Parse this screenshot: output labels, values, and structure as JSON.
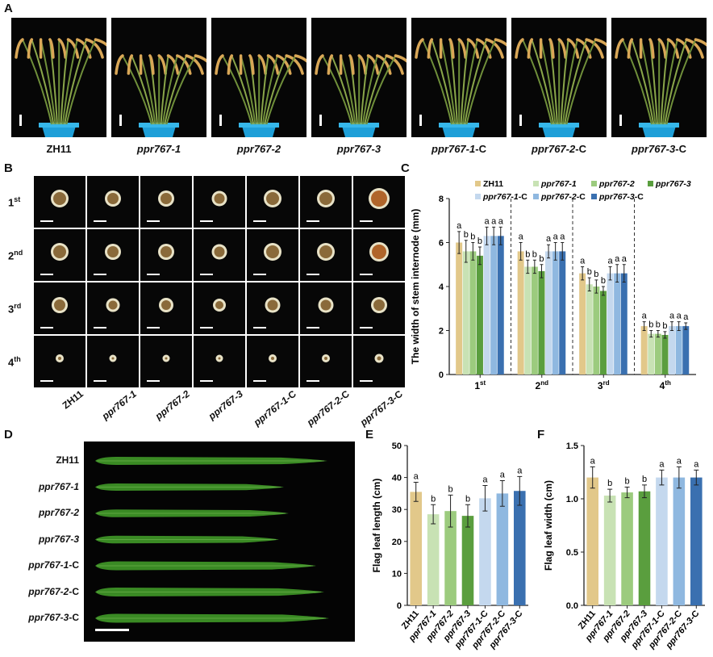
{
  "panels": {
    "A": "A",
    "B": "B",
    "C": "C",
    "D": "D",
    "E": "E",
    "F": "F"
  },
  "genotypes": [
    {
      "name": "ZH11",
      "italic": "",
      "suffix": ""
    },
    {
      "name": "ppr767-1",
      "italic": "ppr767-1",
      "suffix": ""
    },
    {
      "name": "ppr767-2",
      "italic": "ppr767-2",
      "suffix": ""
    },
    {
      "name": "ppr767-3",
      "italic": "ppr767-3",
      "suffix": ""
    },
    {
      "name": "ppr767-1-C",
      "italic": "ppr767-1",
      "suffix": "-C"
    },
    {
      "name": "ppr767-2-C",
      "italic": "ppr767-2",
      "suffix": "-C"
    },
    {
      "name": "ppr767-3-C",
      "italic": "ppr767-3",
      "suffix": "-C"
    }
  ],
  "internode_rows": [
    {
      "base": "1",
      "sup": "st"
    },
    {
      "base": "2",
      "sup": "nd"
    },
    {
      "base": "3",
      "sup": "rd"
    },
    {
      "base": "4",
      "sup": "th"
    }
  ],
  "colors": {
    "ZH11": "#e2c88a",
    "ppr767-1": "#c8e2b4",
    "ppr767-2": "#9ccb7e",
    "ppr767-3": "#5a9e3e",
    "ppr767-1-C": "#c4d8ee",
    "ppr767-2-C": "#8fb8e0",
    "ppr767-3-C": "#3a70b0"
  },
  "chart_data": [
    {
      "id": "C",
      "type": "bar",
      "ylabel": "The width of stem internode (mm)",
      "ylim": [
        0,
        8
      ],
      "yticks": [
        0,
        2,
        4,
        6,
        8
      ],
      "categories": [
        "1st",
        "2nd",
        "3rd",
        "4th"
      ],
      "series": [
        {
          "name": "ZH11",
          "values": [
            6.0,
            5.6,
            4.6,
            2.2
          ],
          "err": [
            0.5,
            0.4,
            0.3,
            0.2
          ],
          "letters": [
            "a",
            "a",
            "a",
            "a"
          ]
        },
        {
          "name": "ppr767-1",
          "values": [
            5.6,
            4.9,
            4.1,
            1.85
          ],
          "err": [
            0.5,
            0.3,
            0.3,
            0.15
          ],
          "letters": [
            "b",
            "b",
            "b",
            "b"
          ]
        },
        {
          "name": "ppr767-2",
          "values": [
            5.6,
            4.9,
            4.0,
            1.85
          ],
          "err": [
            0.4,
            0.3,
            0.3,
            0.15
          ],
          "letters": [
            "b",
            "b",
            "b",
            "b"
          ]
        },
        {
          "name": "ppr767-3",
          "values": [
            5.4,
            4.7,
            3.8,
            1.8
          ],
          "err": [
            0.4,
            0.3,
            0.2,
            0.15
          ],
          "letters": [
            "b",
            "b",
            "b",
            "b"
          ]
        },
        {
          "name": "ppr767-1-C",
          "values": [
            6.3,
            5.6,
            4.6,
            2.2
          ],
          "err": [
            0.4,
            0.3,
            0.3,
            0.2
          ],
          "letters": [
            "a",
            "a",
            "a",
            "a"
          ]
        },
        {
          "name": "ppr767-2-C",
          "values": [
            6.3,
            5.6,
            4.6,
            2.2
          ],
          "err": [
            0.4,
            0.4,
            0.4,
            0.2
          ],
          "letters": [
            "a",
            "a",
            "a",
            "a"
          ]
        },
        {
          "name": "ppr767-3-C",
          "values": [
            6.3,
            5.6,
            4.6,
            2.2
          ],
          "err": [
            0.4,
            0.4,
            0.4,
            0.15
          ],
          "letters": [
            "a",
            "a",
            "a",
            "a"
          ]
        }
      ],
      "legend": "top"
    },
    {
      "id": "E",
      "type": "bar",
      "ylabel": "Flag leaf length (cm)",
      "ylim": [
        0,
        50
      ],
      "yticks": [
        0,
        10,
        20,
        30,
        40,
        50
      ],
      "categories": [
        "ZH11",
        "ppr767-1",
        "ppr767-2",
        "ppr767-3",
        "ppr767-1-C",
        "ppr767-2-C",
        "ppr767-3-C"
      ],
      "values": [
        35.5,
        28.5,
        29.5,
        28,
        33.5,
        35,
        35.8
      ],
      "err": [
        3,
        3,
        5,
        3.5,
        4,
        4,
        4.5
      ],
      "letters": [
        "a",
        "b",
        "b",
        "b",
        "a",
        "a",
        "a"
      ]
    },
    {
      "id": "F",
      "type": "bar",
      "ylabel": "Flag leaf width (cm)",
      "ylim": [
        0,
        1.5
      ],
      "yticks": [
        "0.0",
        "0.5",
        "1.0",
        "1.5"
      ],
      "categories": [
        "ZH11",
        "ppr767-1",
        "ppr767-2",
        "ppr767-3",
        "ppr767-1-C",
        "ppr767-2-C",
        "ppr767-3-C"
      ],
      "values": [
        1.2,
        1.03,
        1.06,
        1.07,
        1.2,
        1.2,
        1.2
      ],
      "err": [
        0.1,
        0.06,
        0.05,
        0.06,
        0.07,
        0.1,
        0.07
      ],
      "letters": [
        "a",
        "b",
        "b",
        "b",
        "a",
        "a",
        "a"
      ]
    }
  ]
}
